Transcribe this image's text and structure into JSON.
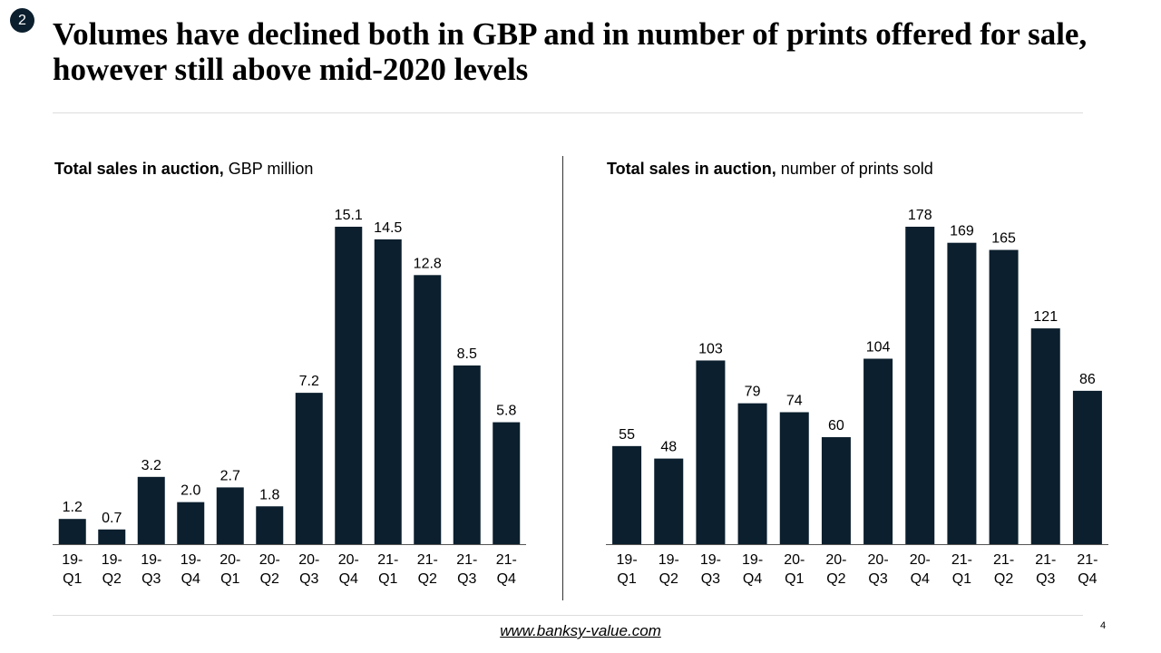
{
  "slide": {
    "number": "2",
    "title": "Volumes have declined both in GBP and in number of prints offered for sale, however still above mid-2020 levels",
    "footer_link": "www.banksy-value.com",
    "page_number": "4"
  },
  "colors": {
    "bar": "#0b1f2e",
    "axis": "#555555",
    "badge": "#0b1f2e"
  },
  "chart_data": [
    {
      "type": "bar",
      "title_bold": "Total sales in auction,",
      "title_rest": " GBP million",
      "categories": [
        "19-Q1",
        "19-Q2",
        "19-Q3",
        "19-Q4",
        "20-Q1",
        "20-Q2",
        "20-Q3",
        "20-Q4",
        "21-Q1",
        "21-Q2",
        "21-Q3",
        "21-Q4"
      ],
      "values": [
        1.2,
        0.7,
        3.2,
        2.0,
        2.7,
        1.8,
        7.2,
        15.1,
        14.5,
        12.8,
        8.5,
        5.8
      ],
      "data_labels": [
        "1.2",
        "0.7",
        "3.2",
        "2.0",
        "2.7",
        "1.8",
        "7.2",
        "15.1",
        "14.5",
        "12.8",
        "8.5",
        "5.8"
      ],
      "ylim": [
        0,
        15.1
      ]
    },
    {
      "type": "bar",
      "title_bold": "Total sales in auction,",
      "title_rest": " number of prints sold",
      "categories": [
        "19-Q1",
        "19-Q2",
        "19-Q3",
        "19-Q4",
        "20-Q1",
        "20-Q2",
        "20-Q3",
        "20-Q4",
        "21-Q1",
        "21-Q2",
        "21-Q3",
        "21-Q4"
      ],
      "values": [
        55,
        48,
        103,
        79,
        74,
        60,
        104,
        178,
        169,
        165,
        121,
        86
      ],
      "data_labels": [
        "55",
        "48",
        "103",
        "79",
        "74",
        "60",
        "104",
        "178",
        "169",
        "165",
        "121",
        "86"
      ],
      "ylim": [
        0,
        178
      ]
    }
  ]
}
